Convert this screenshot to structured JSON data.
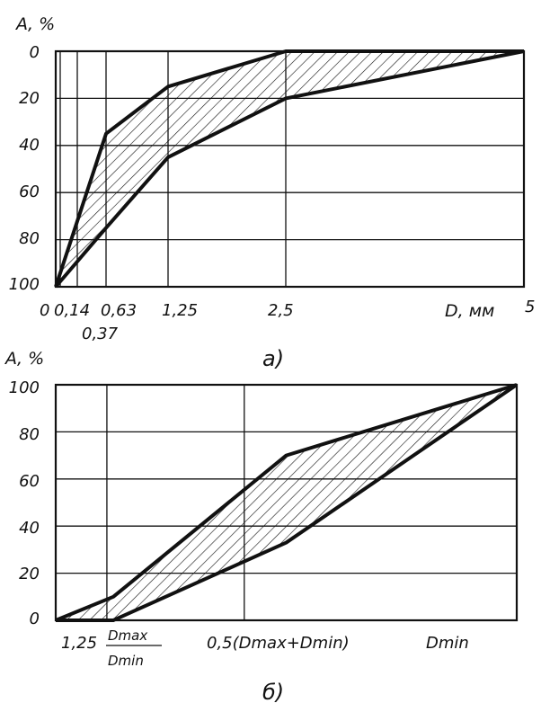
{
  "chart_data": [
    {
      "type": "area",
      "panel_label": "а)",
      "ylabel": "А, %",
      "xlabel": "D, мм",
      "y_axis_inverted": true,
      "ylim": [
        0,
        100
      ],
      "y_ticks": [
        "0",
        "20",
        "40",
        "60",
        "80",
        "100"
      ],
      "x_tick_labels": [
        "0",
        "0,14",
        "0,37",
        "0,63",
        "1,25",
        "2,5",
        "5"
      ],
      "x_grid_values": [
        0.14,
        0.37,
        0.63,
        1.25,
        2.5,
        5
      ],
      "grid": true,
      "series": [
        {
          "x": [
            0,
            0.63,
            1.25,
            2.5,
            5
          ],
          "y": [
            100,
            35,
            15,
            0,
            0
          ]
        },
        {
          "x": [
            0,
            0.63,
            1.25,
            2.5,
            5
          ],
          "y": [
            100,
            75,
            45,
            20,
            0
          ]
        }
      ]
    },
    {
      "type": "area",
      "panel_label": "б)",
      "ylabel": "А, %",
      "ylim": [
        0,
        100
      ],
      "y_ticks": [
        "0",
        "20",
        "40",
        "60",
        "80",
        "100"
      ],
      "x_tick_labels": [
        {
          "main": "1,25",
          "frac_top": "Dmax",
          "frac_bottom": "Dmin"
        },
        {
          "main": "0,5(Dmax+Dmin)"
        },
        {
          "main": "Dmin"
        }
      ],
      "grid": true,
      "series": [
        {
          "x": [
            0,
            0.125,
            0.5,
            1
          ],
          "y": [
            0,
            10,
            70,
            100
          ]
        },
        {
          "x": [
            0,
            0.125,
            0.5,
            1
          ],
          "y": [
            0,
            0,
            33,
            100
          ]
        }
      ]
    }
  ]
}
